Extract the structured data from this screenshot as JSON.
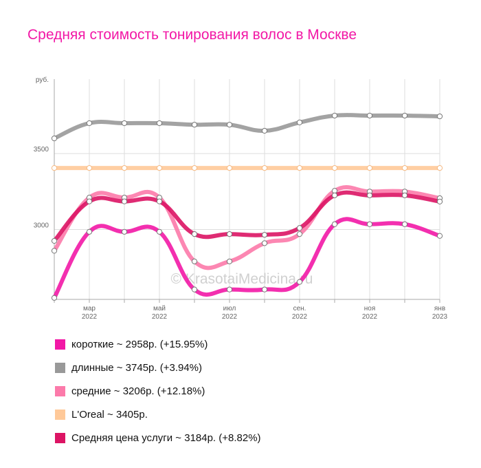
{
  "title": "Средняя стоимость тонирования волос в Москве",
  "watermark": "© KrasotaiMedicina.ru",
  "chart_data": {
    "type": "line",
    "y_unit": "руб.",
    "ylim": [
      2540,
      3990
    ],
    "yticks": [
      3000,
      3500
    ],
    "grid": true,
    "legend_position": "bottom",
    "x": [
      "2022-02",
      "2022-03",
      "2022-04",
      "2022-05",
      "2022-06",
      "2022-07",
      "2022-08",
      "2022-09",
      "2022-10",
      "2022-11",
      "2022-12",
      "2023-01"
    ],
    "xtick_labels": [
      {
        "index": 1,
        "month": "мар",
        "year": "2022"
      },
      {
        "index": 3,
        "month": "май",
        "year": "2022"
      },
      {
        "index": 5,
        "month": "июл",
        "year": "2022"
      },
      {
        "index": 7,
        "month": "сен.",
        "year": "2022"
      },
      {
        "index": 9,
        "month": "ноя",
        "year": "2022"
      },
      {
        "index": 11,
        "month": "янв",
        "year": "2023"
      }
    ],
    "series": [
      {
        "name": "длинные",
        "color": "#999999",
        "values": [
          3600,
          3700,
          3700,
          3700,
          3690,
          3690,
          3650,
          3705,
          3750,
          3750,
          3750,
          3745
        ]
      },
      {
        "name": "L'Oreal",
        "color": "#ffc999",
        "values": [
          3405,
          3405,
          3405,
          3405,
          3405,
          3405,
          3405,
          3405,
          3405,
          3405,
          3405,
          3405
        ]
      },
      {
        "name": "средние",
        "color": "#fc7aaa",
        "values": [
          2860,
          3210,
          3210,
          3210,
          2790,
          2790,
          2910,
          2970,
          3255,
          3250,
          3250,
          3206
        ]
      },
      {
        "name": "Средняя цена услуги",
        "color": "#dc1464",
        "values": [
          2925,
          3185,
          3185,
          3185,
          2970,
          2970,
          2965,
          3010,
          3225,
          3225,
          3225,
          3184
        ]
      },
      {
        "name": "короткие",
        "color": "#f218a6",
        "values": [
          2550,
          2985,
          2985,
          2985,
          2605,
          2605,
          2605,
          2655,
          3035,
          3035,
          3035,
          2958
        ]
      }
    ]
  },
  "legend": [
    {
      "label": "короткие ~ 2958р. (+15.95%)",
      "color": "#f218a6"
    },
    {
      "label": "длинные ~ 3745р. (+3.94%)",
      "color": "#999999"
    },
    {
      "label": "средние ~ 3206р. (+12.18%)",
      "color": "#fc7aaa"
    },
    {
      "label": "L'Oreal ~ 3405р.",
      "color": "#ffc999"
    },
    {
      "label": "Средняя цена услуги ~ 3184р. (+8.82%)",
      "color": "#dc1464"
    }
  ]
}
